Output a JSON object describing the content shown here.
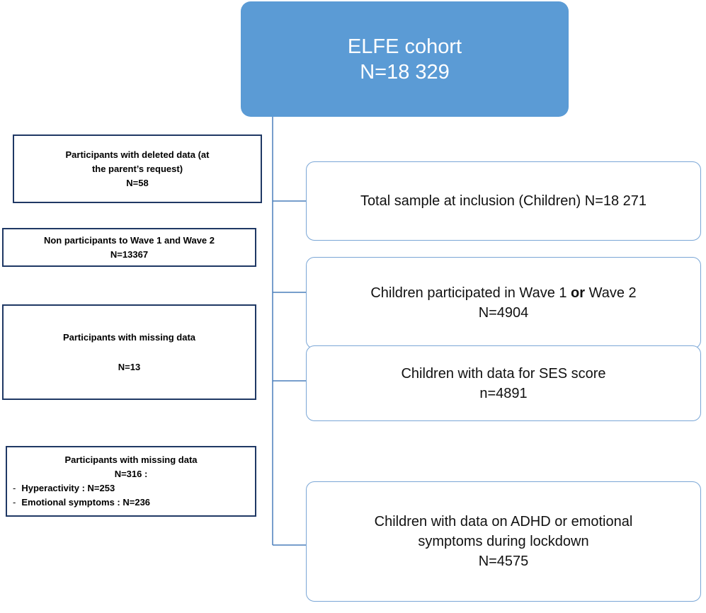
{
  "top": {
    "lines": [
      "ELFE cohort",
      "N=18 329"
    ]
  },
  "steps": [
    {
      "lines": [
        "Total sample at inclusion (Children) N=18 271"
      ]
    },
    {
      "first_line": [
        "Children participated in Wave 1 ",
        "or",
        " Wave 2"
      ],
      "lines": [
        "N=4904"
      ]
    },
    {
      "lines": [
        "Children with data for SES score",
        "n=4891"
      ]
    },
    {
      "lines": [
        "Children with data on ADHD or emotional",
        "symptoms during lockdown",
        "N=4575"
      ]
    }
  ],
  "exclusions": [
    {
      "lines": [
        "Participants with deleted data (at",
        "the parent’s request)",
        "N=58"
      ]
    },
    {
      "lines": [
        "Non participants to Wave 1 and Wave 2",
        "N=13367"
      ]
    },
    {
      "lines": [
        "Participants with missing data",
        "N=13"
      ]
    },
    {
      "lines": [
        "Participants with missing data",
        "N=316 :"
      ],
      "items": [
        "Hyperactivity : N=253",
        "Emotional symptoms : N=236"
      ]
    }
  ]
}
